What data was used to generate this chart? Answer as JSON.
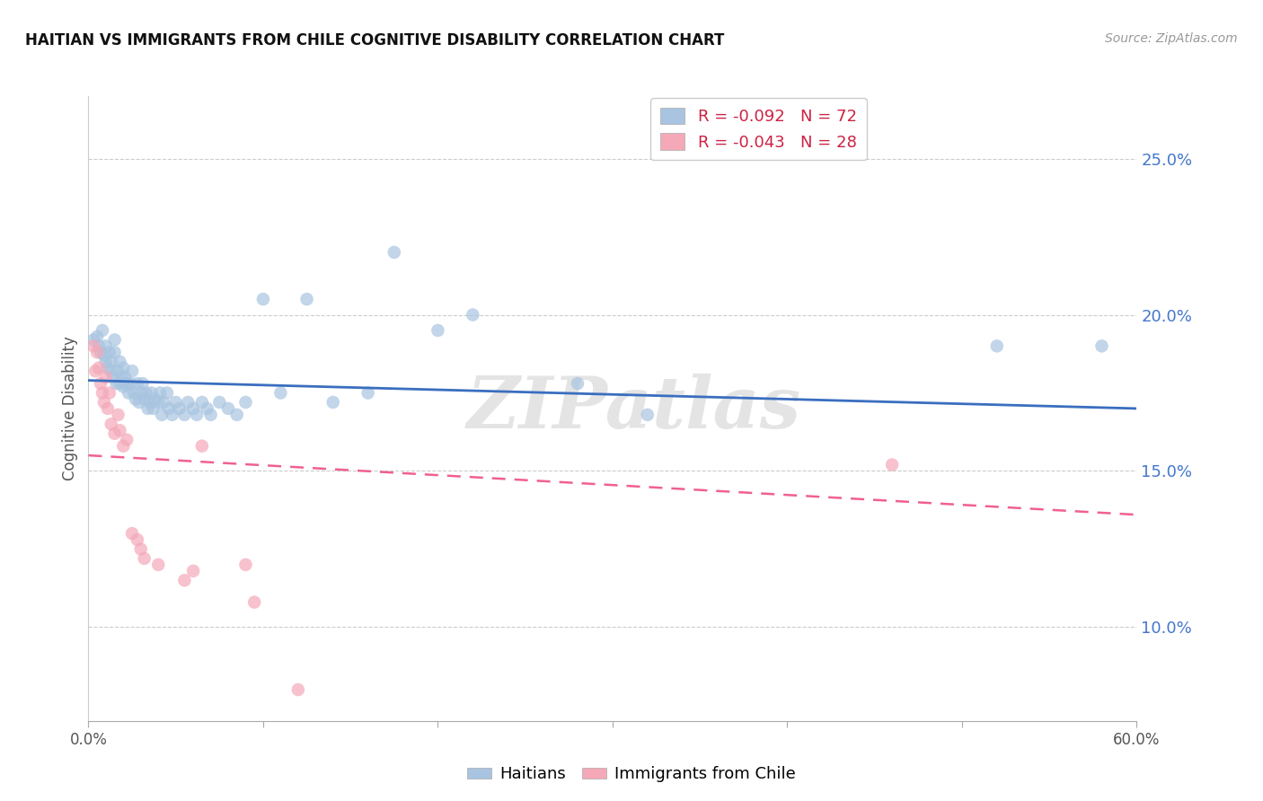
{
  "title": "HAITIAN VS IMMIGRANTS FROM CHILE COGNITIVE DISABILITY CORRELATION CHART",
  "source": "Source: ZipAtlas.com",
  "ylabel": "Cognitive Disability",
  "xmin": 0.0,
  "xmax": 0.6,
  "ymin": 0.07,
  "ymax": 0.27,
  "yticks": [
    0.1,
    0.15,
    0.2,
    0.25
  ],
  "ytick_labels": [
    "10.0%",
    "15.0%",
    "20.0%",
    "25.0%"
  ],
  "legend_blue_r": "R = -0.092",
  "legend_blue_n": "N = 72",
  "legend_pink_r": "R = -0.043",
  "legend_pink_n": "N = 28",
  "blue_color": "#A8C4E0",
  "pink_color": "#F4A8B8",
  "blue_line_color": "#3A6EBF",
  "pink_line_color": "#F06090",
  "background_color": "#FFFFFF",
  "grid_color": "#CCCCCC",
  "watermark": "ZIPatlas",
  "blue_scatter_x": [
    0.003,
    0.005,
    0.006,
    0.007,
    0.008,
    0.009,
    0.01,
    0.01,
    0.011,
    0.012,
    0.013,
    0.013,
    0.014,
    0.015,
    0.015,
    0.016,
    0.017,
    0.018,
    0.018,
    0.019,
    0.02,
    0.02,
    0.021,
    0.022,
    0.023,
    0.024,
    0.025,
    0.026,
    0.027,
    0.028,
    0.029,
    0.03,
    0.031,
    0.032,
    0.033,
    0.034,
    0.035,
    0.036,
    0.037,
    0.038,
    0.04,
    0.041,
    0.042,
    0.043,
    0.045,
    0.046,
    0.048,
    0.05,
    0.052,
    0.055,
    0.057,
    0.06,
    0.062,
    0.065,
    0.068,
    0.07,
    0.075,
    0.08,
    0.085,
    0.09,
    0.1,
    0.11,
    0.125,
    0.14,
    0.16,
    0.175,
    0.2,
    0.22,
    0.28,
    0.32,
    0.52,
    0.58
  ],
  "blue_scatter_y": [
    0.192,
    0.193,
    0.19,
    0.188,
    0.195,
    0.187,
    0.19,
    0.185,
    0.183,
    0.188,
    0.185,
    0.182,
    0.18,
    0.192,
    0.188,
    0.178,
    0.182,
    0.185,
    0.178,
    0.18,
    0.183,
    0.177,
    0.18,
    0.178,
    0.175,
    0.178,
    0.182,
    0.175,
    0.173,
    0.178,
    0.172,
    0.175,
    0.178,
    0.173,
    0.175,
    0.17,
    0.172,
    0.175,
    0.17,
    0.173,
    0.172,
    0.175,
    0.168,
    0.172,
    0.175,
    0.17,
    0.168,
    0.172,
    0.17,
    0.168,
    0.172,
    0.17,
    0.168,
    0.172,
    0.17,
    0.168,
    0.172,
    0.17,
    0.168,
    0.172,
    0.205,
    0.175,
    0.205,
    0.172,
    0.175,
    0.22,
    0.195,
    0.2,
    0.178,
    0.168,
    0.19,
    0.19
  ],
  "pink_scatter_x": [
    0.003,
    0.004,
    0.005,
    0.006,
    0.007,
    0.008,
    0.009,
    0.01,
    0.011,
    0.012,
    0.013,
    0.015,
    0.017,
    0.018,
    0.02,
    0.022,
    0.025,
    0.028,
    0.03,
    0.032,
    0.04,
    0.055,
    0.06,
    0.065,
    0.09,
    0.095,
    0.12,
    0.46
  ],
  "pink_scatter_y": [
    0.19,
    0.182,
    0.188,
    0.183,
    0.178,
    0.175,
    0.172,
    0.18,
    0.17,
    0.175,
    0.165,
    0.162,
    0.168,
    0.163,
    0.158,
    0.16,
    0.13,
    0.128,
    0.125,
    0.122,
    0.12,
    0.115,
    0.118,
    0.158,
    0.12,
    0.108,
    0.08,
    0.152
  ],
  "blue_trend_y_start": 0.179,
  "blue_trend_y_end": 0.17,
  "pink_trend_y_start": 0.155,
  "pink_trend_y_end": 0.136
}
